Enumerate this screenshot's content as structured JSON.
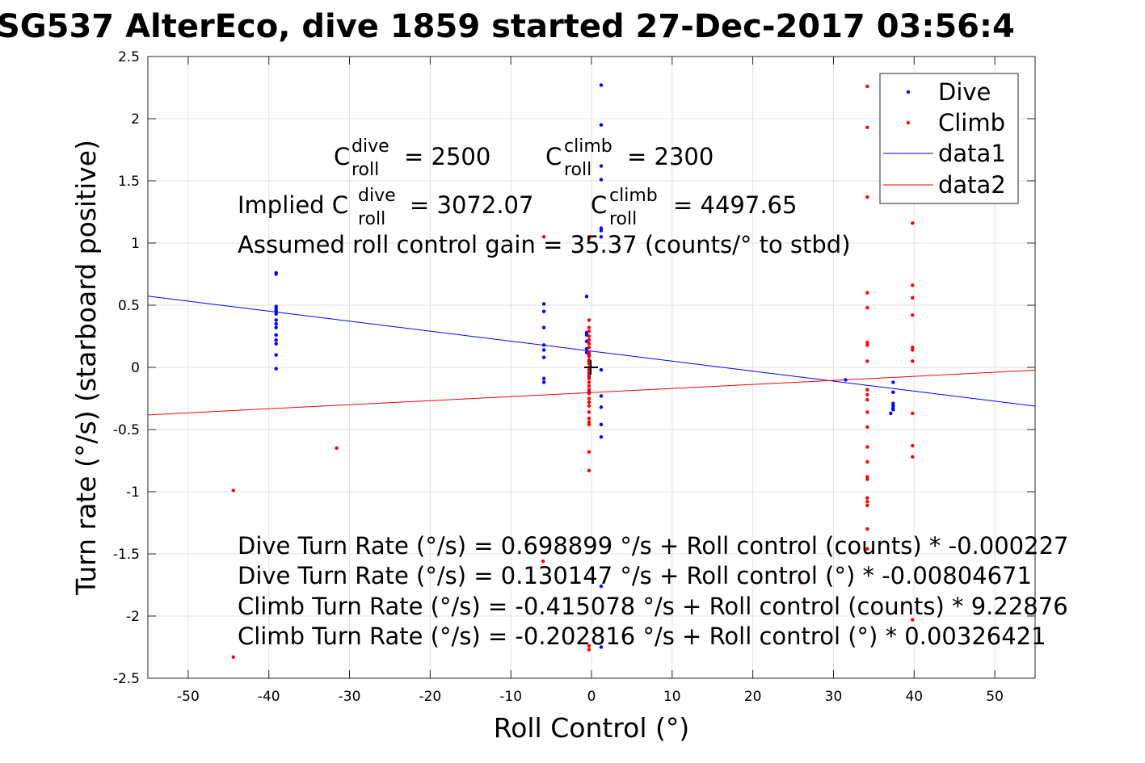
{
  "chart_data": {
    "type": "scatter",
    "title": "SG537 AlterEco, dive 1859 started 27-Dec-2017 03:56:4",
    "xlabel": "Roll Control (°)",
    "ylabel": "Turn rate (°/s) (starboard positive)",
    "xlim": [
      -55,
      55
    ],
    "ylim": [
      -2.5,
      2.5
    ],
    "xticks": [
      -50,
      -40,
      -30,
      -20,
      -10,
      0,
      10,
      20,
      30,
      40,
      50
    ],
    "yticks": [
      -2.5,
      -2,
      -1.5,
      -1,
      -0.5,
      0,
      0.5,
      1,
      1.5,
      2,
      2.5
    ],
    "grid": true,
    "legend_position": "top-right",
    "legend": [
      {
        "label": "Dive",
        "kind": "marker",
        "color": "#0000ff"
      },
      {
        "label": "Climb",
        "kind": "marker",
        "color": "#ff0000"
      },
      {
        "label": "data1",
        "kind": "line",
        "color": "#0000ff"
      },
      {
        "label": "data2",
        "kind": "line",
        "color": "#ff0000"
      }
    ],
    "series": [
      {
        "name": "Dive",
        "color": "#0000ff",
        "points": [
          [
            -39.1,
            0.76
          ],
          [
            -39.1,
            0.75
          ],
          [
            -39.1,
            0.49
          ],
          [
            -39.1,
            0.47
          ],
          [
            -39.1,
            0.45
          ],
          [
            -39.1,
            0.43
          ],
          [
            -39.1,
            0.38
          ],
          [
            -39.1,
            0.35
          ],
          [
            -39.1,
            0.32
          ],
          [
            -39.1,
            0.26
          ],
          [
            -39.1,
            0.22
          ],
          [
            -39.1,
            0.19
          ],
          [
            -39.1,
            0.1
          ],
          [
            -39.1,
            -0.01
          ],
          [
            -5.9,
            0.51
          ],
          [
            -5.9,
            0.45
          ],
          [
            -5.9,
            0.32
          ],
          [
            -5.9,
            0.18
          ],
          [
            -5.9,
            0.14
          ],
          [
            -5.9,
            0.08
          ],
          [
            -5.9,
            -0.09
          ],
          [
            -5.9,
            -0.12
          ],
          [
            -0.6,
            0.57
          ],
          [
            -0.6,
            0.28
          ],
          [
            -0.6,
            0.26
          ],
          [
            -0.6,
            0.21
          ],
          [
            -0.6,
            0.15
          ],
          [
            -0.6,
            0.12
          ],
          [
            -0.3,
            0.1
          ],
          [
            -0.3,
            0.05
          ],
          [
            -0.3,
            -0.02
          ],
          [
            -0.3,
            -0.05
          ],
          [
            -0.3,
            -0.08
          ],
          [
            -0.3,
            -0.2
          ],
          [
            1.2,
            2.27
          ],
          [
            1.2,
            1.95
          ],
          [
            1.2,
            1.62
          ],
          [
            1.2,
            1.51
          ],
          [
            1.2,
            1.12
          ],
          [
            1.2,
            1.1
          ],
          [
            1.2,
            1.05
          ],
          [
            1.2,
            -0.02
          ],
          [
            1.2,
            -0.23
          ],
          [
            1.2,
            -0.32
          ],
          [
            1.2,
            -0.46
          ],
          [
            1.2,
            -0.56
          ],
          [
            1.2,
            -1.76
          ],
          [
            1.2,
            -2.25
          ],
          [
            31.5,
            -0.1
          ],
          [
            37.4,
            -0.12
          ],
          [
            37.4,
            -0.2
          ],
          [
            37.4,
            -0.29
          ],
          [
            37.4,
            -0.31
          ],
          [
            37.4,
            -0.33
          ],
          [
            37.4,
            -0.34
          ],
          [
            37.1,
            -0.37
          ]
        ]
      },
      {
        "name": "Climb",
        "color": "#ff0000",
        "points": [
          [
            -44.4,
            -0.99
          ],
          [
            -44.4,
            -2.33
          ],
          [
            -31.6,
            -0.65
          ],
          [
            -5.9,
            1.05
          ],
          [
            -6.0,
            -1.56
          ],
          [
            -0.3,
            1.04
          ],
          [
            -0.3,
            0.38
          ],
          [
            -0.3,
            0.32
          ],
          [
            -0.3,
            0.29
          ],
          [
            -0.3,
            0.25
          ],
          [
            -0.3,
            0.22
          ],
          [
            -0.3,
            0.19
          ],
          [
            -0.3,
            0.16
          ],
          [
            -0.3,
            0.12
          ],
          [
            -0.3,
            0.09
          ],
          [
            -0.3,
            0.06
          ],
          [
            -0.3,
            0.03
          ],
          [
            -0.3,
            0.0
          ],
          [
            -0.3,
            -0.03
          ],
          [
            -0.3,
            -0.06
          ],
          [
            -0.3,
            -0.09
          ],
          [
            -0.3,
            -0.12
          ],
          [
            -0.3,
            -0.15
          ],
          [
            -0.3,
            -0.18
          ],
          [
            -0.3,
            -0.21
          ],
          [
            -0.3,
            -0.25
          ],
          [
            -0.3,
            -0.28
          ],
          [
            -0.3,
            -0.31
          ],
          [
            -0.3,
            -0.36
          ],
          [
            -0.3,
            -0.41
          ],
          [
            -0.3,
            -0.44
          ],
          [
            -0.3,
            -0.46
          ],
          [
            -0.3,
            -0.68
          ],
          [
            -0.3,
            -0.83
          ],
          [
            -0.3,
            -2.24
          ],
          [
            -0.3,
            -2.27
          ],
          [
            26.0,
            -1.73
          ],
          [
            34.2,
            2.26
          ],
          [
            34.2,
            1.93
          ],
          [
            34.2,
            1.37
          ],
          [
            34.2,
            0.6
          ],
          [
            34.2,
            0.48
          ],
          [
            34.2,
            0.2
          ],
          [
            34.2,
            0.18
          ],
          [
            34.2,
            0.05
          ],
          [
            34.2,
            -0.18
          ],
          [
            34.2,
            -0.22
          ],
          [
            34.2,
            -0.26
          ],
          [
            34.2,
            -0.36
          ],
          [
            34.2,
            -0.48
          ],
          [
            34.2,
            -0.64
          ],
          [
            34.2,
            -0.76
          ],
          [
            34.2,
            -0.88
          ],
          [
            34.2,
            -0.9
          ],
          [
            34.2,
            -1.05
          ],
          [
            34.2,
            -1.08
          ],
          [
            34.2,
            -1.11
          ],
          [
            34.2,
            -1.3
          ],
          [
            34.2,
            -1.46
          ],
          [
            39.8,
            1.16
          ],
          [
            39.8,
            0.66
          ],
          [
            39.8,
            0.56
          ],
          [
            39.8,
            0.42
          ],
          [
            39.8,
            0.16
          ],
          [
            39.8,
            0.14
          ],
          [
            39.8,
            0.05
          ],
          [
            39.8,
            -0.37
          ],
          [
            39.8,
            -0.63
          ],
          [
            39.8,
            -0.72
          ],
          [
            39.8,
            -2.03
          ]
        ]
      },
      {
        "name": "data1",
        "type": "line",
        "color": "#0000ff",
        "x": [
          -55,
          55
        ],
        "y": [
          0.573,
          -0.312
        ]
      },
      {
        "name": "data2",
        "type": "line",
        "color": "#ff0000",
        "x": [
          -55,
          55
        ],
        "y": [
          -0.382,
          -0.023
        ]
      }
    ],
    "origin_marker": {
      "x": 0,
      "y": 0,
      "symbol": "+"
    },
    "annotations": {
      "c_dive_main": "C",
      "c_dive_sup": "dive",
      "c_dive_sub": "roll",
      "c_dive_val": "= 2500",
      "c_climb_main": "C",
      "c_climb_sup": "climb",
      "c_climb_sub": "roll",
      "c_climb_val": "= 2300",
      "implied_prefix": "Implied C",
      "implied_dive_sup": "dive",
      "implied_dive_sub": "roll",
      "implied_dive_val": "= 3072.07",
      "implied_climb_main": "C",
      "implied_climb_sup": "climb",
      "implied_climb_sub": "roll",
      "implied_climb_val": "= 4497.65",
      "gain": "Assumed roll control gain = 35.37 (counts/° to stbd)",
      "fit1": "Dive Turn Rate (°/s) = 0.698899 °/s + Roll control (counts) * -0.000227",
      "fit2": "Dive Turn Rate (°/s) = 0.130147 °/s + Roll control (°) * -0.00804671",
      "fit3": "Climb Turn Rate (°/s) = -0.415078 °/s + Roll control (counts) * 9.22876",
      "fit4": "Climb Turn Rate (°/s) = -0.202816 °/s + Roll control (°) * 0.00326421"
    }
  }
}
